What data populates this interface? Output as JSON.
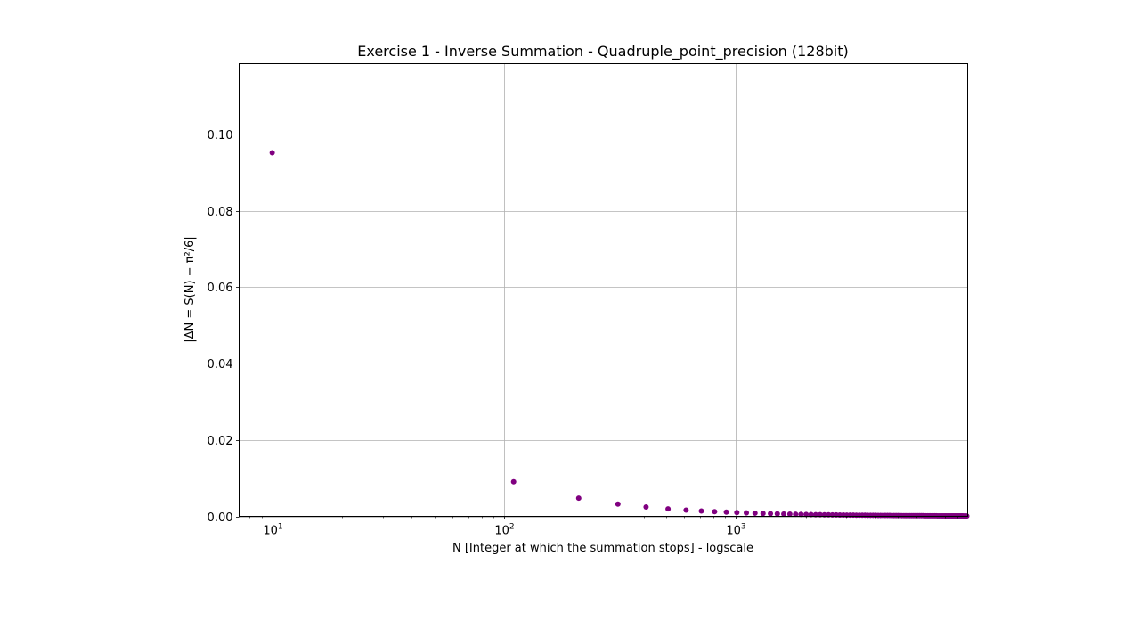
{
  "chart_data": {
    "type": "scatter",
    "title": "Exercise 1 - Inverse Summation - Quadruple_point_precision (128bit)",
    "xlabel": "N [Integer at which the summation stops] - logscale",
    "ylabel": "|ΔN = S(N) − π²/6|",
    "x_scale": "log",
    "xlim": [
      7.2,
      10000
    ],
    "ylim": [
      0,
      0.1185
    ],
    "grid": true,
    "marker_color": "#800080",
    "x_ticks": [
      {
        "value": 10,
        "base": "10",
        "exp": "1"
      },
      {
        "value": 100,
        "base": "10",
        "exp": "2"
      },
      {
        "value": 1000,
        "base": "10",
        "exp": "3"
      }
    ],
    "y_ticks": [
      {
        "value": 0.0,
        "label": "0.00"
      },
      {
        "value": 0.02,
        "label": "0.02"
      },
      {
        "value": 0.04,
        "label": "0.04"
      },
      {
        "value": 0.06,
        "label": "0.06"
      },
      {
        "value": 0.08,
        "label": "0.08"
      },
      {
        "value": 0.1,
        "label": "0.10"
      }
    ],
    "series": [
      {
        "x": [
          10,
          110,
          210,
          310,
          410,
          510,
          610,
          710,
          810,
          910,
          1010,
          1110,
          1210,
          1310,
          1410,
          1510,
          1610,
          1710,
          1810,
          1910,
          2010,
          2110,
          2210,
          2310,
          2410,
          2510,
          2610,
          2710,
          2810,
          2910,
          3010,
          3110,
          3210,
          3310,
          3410,
          3510,
          3610,
          3710,
          3810,
          3910,
          4010,
          4110,
          4210,
          4310,
          4410,
          4510,
          4610,
          4710,
          4810,
          4910,
          5010,
          5110,
          5210,
          5310,
          5410,
          5510,
          5610,
          5710,
          5810,
          5910,
          6010,
          6110,
          6210,
          6310,
          6410,
          6510,
          6610,
          6710,
          6810,
          6910,
          7010,
          7110,
          7210,
          7310,
          7410,
          7510,
          7610,
          7710,
          7810,
          7910,
          8010,
          8110,
          8210,
          8310,
          8410,
          8510,
          8610,
          8710,
          8810,
          8910,
          9010,
          9110,
          9210,
          9310,
          9410,
          9510,
          9610,
          9710,
          9810,
          9910
        ],
        "y": [
          0.09516,
          0.00905,
          0.00475,
          0.00322,
          0.00244,
          0.00196,
          0.00164,
          0.00141,
          0.00123,
          0.0011,
          0.00099,
          0.0009,
          0.00083,
          0.00076,
          0.00071,
          0.00066,
          0.00062,
          0.00058,
          0.00055,
          0.00052,
          0.0005,
          0.00047,
          0.00045,
          0.00043,
          0.00041,
          0.0004,
          0.00038,
          0.00037,
          0.00036,
          0.00034,
          0.00033,
          0.00032,
          0.00031,
          0.0003,
          0.00029,
          0.00028,
          0.00028,
          0.00027,
          0.00026,
          0.00026,
          0.00025,
          0.00024,
          0.00024,
          0.00023,
          0.00023,
          0.00022,
          0.00022,
          0.00021,
          0.00021,
          0.0002,
          0.0002,
          0.0002,
          0.00019,
          0.00019,
          0.00018,
          0.00018,
          0.00018,
          0.00018,
          0.00017,
          0.00017,
          0.00017,
          0.00016,
          0.00016,
          0.00016,
          0.00016,
          0.00015,
          0.00015,
          0.00015,
          0.00015,
          0.00014,
          0.00014,
          0.00014,
          0.00014,
          0.00014,
          0.00013,
          0.00013,
          0.00013,
          0.00013,
          0.00013,
          0.00013,
          0.00012,
          0.00012,
          0.00012,
          0.00012,
          0.00012,
          0.00012,
          0.00012,
          0.00011,
          0.00011,
          0.00011,
          0.00011,
          0.00011,
          0.00011,
          0.00011,
          0.00011,
          0.00011,
          0.0001,
          0.0001,
          0.0001,
          0.0001
        ]
      }
    ]
  }
}
